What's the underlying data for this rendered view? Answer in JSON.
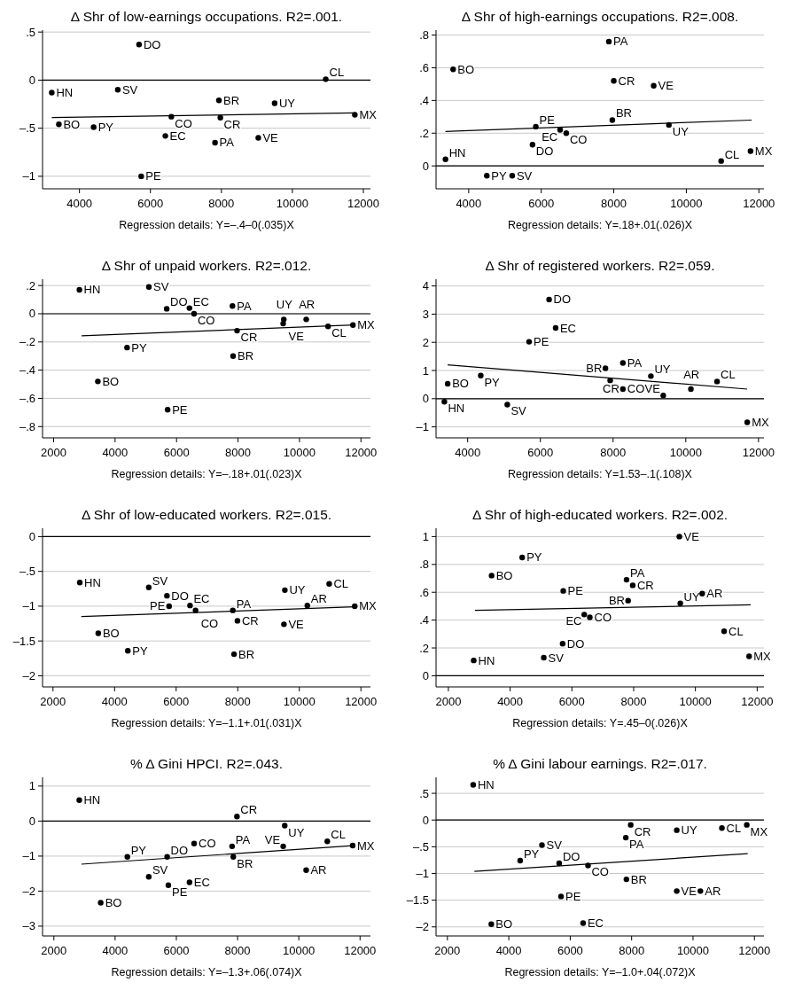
{
  "chart_data": [
    {
      "type": "scatter",
      "title": "Δ Shr of low-earnings occupations. R2=.001.",
      "xlabel": "Regression details: Y=–.4–0(.035)X",
      "xlim": [
        2960,
        12200
      ],
      "xticks": [
        4000,
        6000,
        8000,
        10000,
        12000
      ],
      "ylim": [
        -1.13,
        0.52
      ],
      "yticks": [
        {
          "value": 0.5,
          "label": ".5"
        },
        0,
        {
          "value": -0.5,
          "label": "–.5"
        },
        {
          "value": -1,
          "label": "–1"
        }
      ],
      "grid": "y",
      "marker": "circle",
      "ref_lines": [
        {
          "axis": "y",
          "value": 0,
          "color": "#000000"
        }
      ],
      "series": [
        {
          "name": "HN",
          "color": "#000000",
          "x": [
            3220
          ],
          "values": [
            -0.13
          ]
        },
        {
          "name": "DO",
          "color": "#000000",
          "x": [
            5680
          ],
          "values": [
            0.37
          ]
        },
        {
          "name": "SV",
          "color": "#000000",
          "x": [
            5080
          ],
          "values": [
            -0.1
          ]
        },
        {
          "name": "BO",
          "color": "#000000",
          "x": [
            3420
          ],
          "values": [
            -0.46
          ]
        },
        {
          "name": "PY",
          "color": "#000000",
          "x": [
            4400
          ],
          "values": [
            -0.49
          ]
        },
        {
          "name": "CO",
          "color": "#000000",
          "x": [
            6590
          ],
          "values": [
            -0.38
          ]
        },
        {
          "name": "EC",
          "color": "#000000",
          "x": [
            6420
          ],
          "values": [
            -0.58
          ]
        },
        {
          "name": "PE",
          "color": "#000000",
          "x": [
            5740
          ],
          "values": [
            -1.0
          ]
        },
        {
          "name": "BR",
          "color": "#000000",
          "x": [
            7930
          ],
          "values": [
            -0.21
          ]
        },
        {
          "name": "CR",
          "color": "#000000",
          "x": [
            7970
          ],
          "values": [
            -0.39
          ]
        },
        {
          "name": "PA",
          "color": "#000000",
          "x": [
            7820
          ],
          "values": [
            -0.65
          ]
        },
        {
          "name": "UY",
          "color": "#000000",
          "x": [
            9500
          ],
          "values": [
            -0.24
          ]
        },
        {
          "name": "VE",
          "color": "#000000",
          "x": [
            9040
          ],
          "values": [
            -0.6
          ]
        },
        {
          "name": "CL",
          "color": "#000000",
          "x": [
            10940
          ],
          "values": [
            0.01
          ]
        },
        {
          "name": "MX",
          "color": "#000000",
          "x": [
            11760
          ],
          "values": [
            -0.36
          ]
        },
        {
          "type": "line",
          "marker": "none",
          "color": "#000000",
          "x": [
            3220,
            11760
          ],
          "values": [
            -0.39,
            -0.34
          ]
        }
      ]
    },
    {
      "type": "scatter",
      "title": "Δ Shr of high-earnings occupations. R2=.008.",
      "xlabel": "Regression details: Y=.18+.01(.026)X",
      "xlim": [
        3100,
        12140
      ],
      "xticks": [
        4000,
        6000,
        8000,
        10000,
        12000
      ],
      "ylim": [
        -0.14,
        0.83
      ],
      "yticks": [
        {
          "value": 0.8,
          "label": ".8"
        },
        {
          "value": 0.6,
          "label": ".6"
        },
        {
          "value": 0.4,
          "label": ".4"
        },
        {
          "value": 0.2,
          "label": ".2"
        },
        0
      ],
      "grid": "y",
      "marker": "circle",
      "ref_lines": [
        {
          "axis": "y",
          "value": 0,
          "color": "#000000"
        }
      ],
      "series": [
        {
          "name": "PA",
          "color": "#000000",
          "x": [
            7865
          ],
          "values": [
            0.76
          ]
        },
        {
          "name": "BO",
          "color": "#000000",
          "x": [
            3570
          ],
          "values": [
            0.59
          ]
        },
        {
          "name": "CR",
          "color": "#000000",
          "x": [
            8000
          ],
          "values": [
            0.52
          ]
        },
        {
          "name": "VE",
          "color": "#000000",
          "x": [
            9100
          ],
          "values": [
            0.49
          ]
        },
        {
          "name": "PE",
          "color": "#000000",
          "x": [
            5850
          ],
          "values": [
            0.24
          ]
        },
        {
          "name": "EC",
          "color": "#000000",
          "x": [
            6520
          ],
          "values": [
            0.22
          ]
        },
        {
          "name": "CO",
          "color": "#000000",
          "x": [
            6690
          ],
          "values": [
            0.2
          ]
        },
        {
          "name": "BR",
          "color": "#000000",
          "x": [
            7960
          ],
          "values": [
            0.28
          ]
        },
        {
          "name": "UY",
          "color": "#000000",
          "x": [
            9520
          ],
          "values": [
            0.25
          ]
        },
        {
          "name": "DO",
          "color": "#000000",
          "x": [
            5760
          ],
          "values": [
            0.13
          ]
        },
        {
          "name": "HN",
          "color": "#000000",
          "x": [
            3360
          ],
          "values": [
            0.04
          ]
        },
        {
          "name": "PY",
          "color": "#000000",
          "x": [
            4500
          ],
          "values": [
            -0.06
          ]
        },
        {
          "name": "SV",
          "color": "#000000",
          "x": [
            5200
          ],
          "values": [
            -0.06
          ]
        },
        {
          "name": "CL",
          "color": "#000000",
          "x": [
            10960
          ],
          "values": [
            0.03
          ]
        },
        {
          "name": "MX",
          "color": "#000000",
          "x": [
            11770
          ],
          "values": [
            0.09
          ]
        },
        {
          "type": "line",
          "marker": "none",
          "color": "#000000",
          "x": [
            3360,
            11800
          ],
          "values": [
            0.21,
            0.28
          ]
        }
      ]
    },
    {
      "type": "scatter",
      "title": "Δ Shr of unpaid workers. R2=.012.",
      "xlabel": "Regression details: Y=–.18+.01(.023)X",
      "xlim": [
        1640,
        12310
      ],
      "xticks": [
        2000,
        4000,
        6000,
        8000,
        10000,
        12000
      ],
      "ylim": [
        -0.88,
        0.245
      ],
      "yticks": [
        {
          "value": 0.2,
          "label": ".2"
        },
        0,
        {
          "value": -0.2,
          "label": "–.2"
        },
        {
          "value": -0.4,
          "label": "–.4"
        },
        {
          "value": -0.6,
          "label": "–.6"
        },
        {
          "value": -0.8,
          "label": "–.8"
        }
      ],
      "grid": "y",
      "marker": "circle",
      "ref_lines": [
        {
          "axis": "y",
          "value": 0,
          "color": "#000000"
        }
      ],
      "series": [
        {
          "name": "HN",
          "color": "#000000",
          "x": [
            2840
          ],
          "values": [
            0.17
          ]
        },
        {
          "name": "SV",
          "color": "#000000",
          "x": [
            5100
          ],
          "values": [
            0.19
          ]
        },
        {
          "name": "DO",
          "color": "#000000",
          "x": [
            5680
          ],
          "values": [
            0.035
          ]
        },
        {
          "name": "EC",
          "color": "#000000",
          "x": [
            6420
          ],
          "values": [
            0.04
          ]
        },
        {
          "name": "CO",
          "color": "#000000",
          "x": [
            6570
          ],
          "values": [
            0.0
          ]
        },
        {
          "name": "PA",
          "color": "#000000",
          "x": [
            7820
          ],
          "values": [
            0.055
          ]
        },
        {
          "name": "UY",
          "color": "#000000",
          "x": [
            9490
          ],
          "values": [
            -0.04
          ]
        },
        {
          "name": "VE",
          "color": "#000000",
          "x": [
            9470
          ],
          "values": [
            -0.07
          ]
        },
        {
          "name": "AR",
          "color": "#000000",
          "x": [
            10220
          ],
          "values": [
            -0.04
          ]
        },
        {
          "name": "CL",
          "color": "#000000",
          "x": [
            10930
          ],
          "values": [
            -0.09
          ]
        },
        {
          "name": "MX",
          "color": "#000000",
          "x": [
            11740
          ],
          "values": [
            -0.08
          ]
        },
        {
          "name": "CR",
          "color": "#000000",
          "x": [
            7970
          ],
          "values": [
            -0.12
          ]
        },
        {
          "name": "BR",
          "color": "#000000",
          "x": [
            7840
          ],
          "values": [
            -0.3
          ]
        },
        {
          "name": "PY",
          "color": "#000000",
          "x": [
            4390
          ],
          "values": [
            -0.24
          ]
        },
        {
          "name": "BO",
          "color": "#000000",
          "x": [
            3440
          ],
          "values": [
            -0.48
          ]
        },
        {
          "name": "PE",
          "color": "#000000",
          "x": [
            5710
          ],
          "values": [
            -0.68
          ]
        },
        {
          "type": "line",
          "marker": "none",
          "color": "#000000",
          "x": [
            2910,
            11770
          ],
          "values": [
            -0.156,
            -0.08
          ]
        }
      ]
    },
    {
      "type": "scatter",
      "title": "Δ Shr of registered workers. R2=.059.",
      "xlabel": "Regression details: Y=1.53–.1(.108)X",
      "xlim": [
        3130,
        12150
      ],
      "xticks": [
        4000,
        6000,
        8000,
        10000,
        12000
      ],
      "ylim": [
        -1.39,
        4.24
      ],
      "yticks": [
        4,
        3,
        2,
        1,
        0,
        {
          "value": -1,
          "label": "–1"
        }
      ],
      "grid": "y",
      "marker": "circle",
      "ref_lines": [
        {
          "axis": "y",
          "value": 0,
          "color": "#000000"
        }
      ],
      "series": [
        {
          "name": "DO",
          "color": "#000000",
          "x": [
            6240
          ],
          "values": [
            3.52
          ]
        },
        {
          "name": "EC",
          "color": "#000000",
          "x": [
            6420
          ],
          "values": [
            2.51
          ]
        },
        {
          "name": "PE",
          "color": "#000000",
          "x": [
            5690
          ],
          "values": [
            2.02
          ]
        },
        {
          "name": "BR",
          "color": "#000000",
          "x": [
            7790
          ],
          "values": [
            1.08
          ]
        },
        {
          "name": "PA",
          "color": "#000000",
          "x": [
            8270
          ],
          "values": [
            1.27
          ]
        },
        {
          "name": "UY",
          "color": "#000000",
          "x": [
            9040
          ],
          "values": [
            0.8
          ]
        },
        {
          "name": "AR",
          "color": "#000000",
          "x": [
            10140
          ],
          "values": [
            0.34
          ]
        },
        {
          "name": "CL",
          "color": "#000000",
          "x": [
            10860
          ],
          "values": [
            0.61
          ]
        },
        {
          "name": "CR",
          "color": "#000000",
          "x": [
            7920
          ],
          "values": [
            0.65
          ]
        },
        {
          "name": "CO",
          "color": "#000000",
          "x": [
            8270
          ],
          "values": [
            0.34
          ]
        },
        {
          "name": "VE",
          "color": "#000000",
          "x": [
            9380
          ],
          "values": [
            0.11
          ]
        },
        {
          "name": "BO",
          "color": "#000000",
          "x": [
            3450
          ],
          "values": [
            0.53
          ]
        },
        {
          "name": "PY",
          "color": "#000000",
          "x": [
            4360
          ],
          "values": [
            0.82
          ]
        },
        {
          "name": "HN",
          "color": "#000000",
          "x": [
            3360
          ],
          "values": [
            -0.11
          ]
        },
        {
          "name": "SV",
          "color": "#000000",
          "x": [
            5090
          ],
          "values": [
            -0.21
          ]
        },
        {
          "name": "MX",
          "color": "#000000",
          "x": [
            11690
          ],
          "values": [
            -0.84
          ]
        },
        {
          "type": "line",
          "marker": "none",
          "color": "#000000",
          "x": [
            3450,
            11690
          ],
          "values": [
            1.2,
            0.34
          ]
        }
      ]
    },
    {
      "type": "scatter",
      "title": "Δ Shr of low-educated workers. R2=.015.",
      "xlabel": "Regression details: Y=–1.1+.01(.031)X",
      "xlim": [
        1660,
        12310
      ],
      "xticks": [
        2000,
        4000,
        6000,
        8000,
        10000,
        12000
      ],
      "ylim": [
        -2.16,
        0.12
      ],
      "yticks": [
        0,
        {
          "value": -0.5,
          "label": "–.5"
        },
        {
          "value": -1,
          "label": "–1"
        },
        {
          "value": -1.5,
          "label": "–1.5"
        },
        {
          "value": -2,
          "label": "–2"
        }
      ],
      "grid": "y",
      "marker": "circle",
      "ref_lines": [
        {
          "axis": "y",
          "value": 0,
          "color": "#000000"
        }
      ],
      "series": [
        {
          "name": "HN",
          "color": "#000000",
          "x": [
            2870
          ],
          "values": [
            -0.66
          ]
        },
        {
          "name": "SV",
          "color": "#000000",
          "x": [
            5110
          ],
          "values": [
            -0.73
          ]
        },
        {
          "name": "DO",
          "color": "#000000",
          "x": [
            5700
          ],
          "values": [
            -0.85
          ]
        },
        {
          "name": "PE",
          "color": "#000000",
          "x": [
            5770
          ],
          "values": [
            -1.0
          ]
        },
        {
          "name": "EC",
          "color": "#000000",
          "x": [
            6450
          ],
          "values": [
            -0.99
          ]
        },
        {
          "name": "CO",
          "color": "#000000",
          "x": [
            6630
          ],
          "values": [
            -1.06
          ]
        },
        {
          "name": "PA",
          "color": "#000000",
          "x": [
            7840
          ],
          "values": [
            -1.06
          ]
        },
        {
          "name": "CR",
          "color": "#000000",
          "x": [
            7990
          ],
          "values": [
            -1.21
          ]
        },
        {
          "name": "BR",
          "color": "#000000",
          "x": [
            7880
          ],
          "values": [
            -1.69
          ]
        },
        {
          "name": "UY",
          "color": "#000000",
          "x": [
            9530
          ],
          "values": [
            -0.77
          ]
        },
        {
          "name": "VE",
          "color": "#000000",
          "x": [
            9500
          ],
          "values": [
            -1.26
          ]
        },
        {
          "name": "AR",
          "color": "#000000",
          "x": [
            10260
          ],
          "values": [
            -0.99
          ]
        },
        {
          "name": "CL",
          "color": "#000000",
          "x": [
            10970
          ],
          "values": [
            -0.68
          ]
        },
        {
          "name": "MX",
          "color": "#000000",
          "x": [
            11800
          ],
          "values": [
            -1.0
          ]
        },
        {
          "name": "BO",
          "color": "#000000",
          "x": [
            3470
          ],
          "values": [
            -1.39
          ]
        },
        {
          "name": "PY",
          "color": "#000000",
          "x": [
            4430
          ],
          "values": [
            -1.64
          ]
        },
        {
          "type": "line",
          "marker": "none",
          "color": "#000000",
          "x": [
            2920,
            11800
          ],
          "values": [
            -1.15,
            -1.01
          ]
        }
      ]
    },
    {
      "type": "scatter",
      "title": "Δ Shr of high-educated workers. R2=.002.",
      "xlabel": "Regression details: Y=.45–0(.026)X",
      "xlim": [
        1600,
        12220
      ],
      "xticks": [
        2000,
        4000,
        6000,
        8000,
        10000,
        12000
      ],
      "ylim": [
        -0.08,
        1.06
      ],
      "yticks": [
        1,
        {
          "value": 0.8,
          "label": ".8"
        },
        {
          "value": 0.6,
          "label": ".6"
        },
        {
          "value": 0.4,
          "label": ".4"
        },
        {
          "value": 0.2,
          "label": ".2"
        },
        0
      ],
      "grid": "y",
      "marker": "circle",
      "ref_lines": [
        {
          "axis": "y",
          "value": 0,
          "color": "#000000"
        }
      ],
      "series": [
        {
          "name": "VE",
          "color": "#000000",
          "x": [
            9480
          ],
          "values": [
            1.0
          ]
        },
        {
          "name": "PY",
          "color": "#000000",
          "x": [
            4390
          ],
          "values": [
            0.85
          ]
        },
        {
          "name": "BO",
          "color": "#000000",
          "x": [
            3400
          ],
          "values": [
            0.72
          ]
        },
        {
          "name": "PE",
          "color": "#000000",
          "x": [
            5720
          ],
          "values": [
            0.61
          ]
        },
        {
          "name": "PA",
          "color": "#000000",
          "x": [
            7770
          ],
          "values": [
            0.69
          ]
        },
        {
          "name": "CR",
          "color": "#000000",
          "x": [
            7970
          ],
          "values": [
            0.65
          ]
        },
        {
          "name": "BR",
          "color": "#000000",
          "x": [
            7820
          ],
          "values": [
            0.54
          ]
        },
        {
          "name": "UY",
          "color": "#000000",
          "x": [
            9510
          ],
          "values": [
            0.52
          ]
        },
        {
          "name": "AR",
          "color": "#000000",
          "x": [
            10220
          ],
          "values": [
            0.59
          ]
        },
        {
          "name": "EC",
          "color": "#000000",
          "x": [
            6400
          ],
          "values": [
            0.44
          ]
        },
        {
          "name": "CO",
          "color": "#000000",
          "x": [
            6580
          ],
          "values": [
            0.42
          ]
        },
        {
          "name": "CL",
          "color": "#000000",
          "x": [
            10930
          ],
          "values": [
            0.32
          ]
        },
        {
          "name": "DO",
          "color": "#000000",
          "x": [
            5700
          ],
          "values": [
            0.23
          ]
        },
        {
          "name": "SV",
          "color": "#000000",
          "x": [
            5090
          ],
          "values": [
            0.13
          ]
        },
        {
          "name": "HN",
          "color": "#000000",
          "x": [
            2820
          ],
          "values": [
            0.11
          ]
        },
        {
          "name": "MX",
          "color": "#000000",
          "x": [
            11740
          ],
          "values": [
            0.14
          ]
        },
        {
          "type": "line",
          "marker": "none",
          "color": "#000000",
          "x": [
            2860,
            11790
          ],
          "values": [
            0.47,
            0.51
          ]
        }
      ]
    },
    {
      "type": "scatter",
      "title": "% Δ Gini HPCI. R2=.043.",
      "xlabel": "Regression details: Y=–1.3+.06(.074)X",
      "xlim": [
        1630,
        12340
      ],
      "xticks": [
        2000,
        4000,
        6000,
        8000,
        10000,
        12000
      ],
      "ylim": [
        -3.28,
        1.25
      ],
      "yticks": [
        1,
        0,
        {
          "value": -1,
          "label": "–1"
        },
        {
          "value": -2,
          "label": "–2"
        },
        {
          "value": -3,
          "label": "–3"
        }
      ],
      "grid": "y",
      "marker": "circle",
      "ref_lines": [
        {
          "axis": "y",
          "value": 0,
          "color": "#000000"
        }
      ],
      "series": [
        {
          "name": "HN",
          "color": "#000000",
          "x": [
            2830
          ],
          "values": [
            0.6
          ]
        },
        {
          "name": "CR",
          "color": "#000000",
          "x": [
            7980
          ],
          "values": [
            0.13
          ]
        },
        {
          "name": "UY",
          "color": "#000000",
          "x": [
            9540
          ],
          "values": [
            -0.13
          ]
        },
        {
          "name": "CL",
          "color": "#000000",
          "x": [
            10930
          ],
          "values": [
            -0.58
          ]
        },
        {
          "name": "MX",
          "color": "#000000",
          "x": [
            11760
          ],
          "values": [
            -0.7
          ]
        },
        {
          "name": "VE",
          "color": "#000000",
          "x": [
            9490
          ],
          "values": [
            -0.72
          ]
        },
        {
          "name": "PA",
          "color": "#000000",
          "x": [
            7820
          ],
          "values": [
            -0.72
          ]
        },
        {
          "name": "CO",
          "color": "#000000",
          "x": [
            6580
          ],
          "values": [
            -0.64
          ]
        },
        {
          "name": "DO",
          "color": "#000000",
          "x": [
            5700
          ],
          "values": [
            -1.02
          ]
        },
        {
          "name": "PY",
          "color": "#000000",
          "x": [
            4400
          ],
          "values": [
            -1.02
          ]
        },
        {
          "name": "BR",
          "color": "#000000",
          "x": [
            7860
          ],
          "values": [
            -1.02
          ]
        },
        {
          "name": "AR",
          "color": "#000000",
          "x": [
            10240
          ],
          "values": [
            -1.4
          ]
        },
        {
          "name": "SV",
          "color": "#000000",
          "x": [
            5100
          ],
          "values": [
            -1.59
          ]
        },
        {
          "name": "PE",
          "color": "#000000",
          "x": [
            5740
          ],
          "values": [
            -1.83
          ]
        },
        {
          "name": "EC",
          "color": "#000000",
          "x": [
            6430
          ],
          "values": [
            -1.75
          ]
        },
        {
          "name": "BO",
          "color": "#000000",
          "x": [
            3530
          ],
          "values": [
            -2.33
          ]
        },
        {
          "type": "line",
          "marker": "none",
          "color": "#000000",
          "x": [
            2900,
            11760
          ],
          "values": [
            -1.23,
            -0.7
          ]
        }
      ]
    },
    {
      "type": "scatter",
      "title": "% Δ Gini labour earnings. R2=.017.",
      "xlabel": "Regression details: Y=–1.0+.04(.072)X",
      "xlim": [
        1630,
        12310
      ],
      "xticks": [
        2000,
        4000,
        6000,
        8000,
        10000,
        12000
      ],
      "ylim": [
        -2.17,
        0.8
      ],
      "yticks": [
        {
          "value": 0.5,
          "label": ".5"
        },
        0,
        {
          "value": -0.5,
          "label": "–.5"
        },
        {
          "value": -1,
          "label": "–1"
        },
        {
          "value": -1.5,
          "label": "–1.5"
        },
        {
          "value": -2,
          "label": "–2"
        }
      ],
      "grid": "y",
      "marker": "circle",
      "ref_lines": [
        {
          "axis": "y",
          "value": 0,
          "color": "#000000"
        }
      ],
      "series": [
        {
          "name": "HN",
          "color": "#000000",
          "x": [
            2840
          ],
          "values": [
            0.66
          ]
        },
        {
          "name": "CR",
          "color": "#000000",
          "x": [
            7970
          ],
          "values": [
            -0.09
          ]
        },
        {
          "name": "UY",
          "color": "#000000",
          "x": [
            9470
          ],
          "values": [
            -0.19
          ]
        },
        {
          "name": "CL",
          "color": "#000000",
          "x": [
            10940
          ],
          "values": [
            -0.15
          ]
        },
        {
          "name": "MX",
          "color": "#000000",
          "x": [
            11750
          ],
          "values": [
            -0.09
          ]
        },
        {
          "name": "PA",
          "color": "#000000",
          "x": [
            7810
          ],
          "values": [
            -0.33
          ]
        },
        {
          "name": "SV",
          "color": "#000000",
          "x": [
            5080
          ],
          "values": [
            -0.47
          ]
        },
        {
          "name": "PY",
          "color": "#000000",
          "x": [
            4370
          ],
          "values": [
            -0.76
          ]
        },
        {
          "name": "DO",
          "color": "#000000",
          "x": [
            5640
          ],
          "values": [
            -0.81
          ]
        },
        {
          "name": "CO",
          "color": "#000000",
          "x": [
            6580
          ],
          "values": [
            -0.85
          ]
        },
        {
          "name": "BR",
          "color": "#000000",
          "x": [
            7830
          ],
          "values": [
            -1.11
          ]
        },
        {
          "name": "VE",
          "color": "#000000",
          "x": [
            9470
          ],
          "values": [
            -1.33
          ]
        },
        {
          "name": "AR",
          "color": "#000000",
          "x": [
            10240
          ],
          "values": [
            -1.33
          ]
        },
        {
          "name": "PE",
          "color": "#000000",
          "x": [
            5700
          ],
          "values": [
            -1.43
          ]
        },
        {
          "name": "BO",
          "color": "#000000",
          "x": [
            3430
          ],
          "values": [
            -1.95
          ]
        },
        {
          "name": "EC",
          "color": "#000000",
          "x": [
            6420
          ],
          "values": [
            -1.93
          ]
        },
        {
          "type": "line",
          "marker": "none",
          "color": "#000000",
          "x": [
            2880,
            11780
          ],
          "values": [
            -0.96,
            -0.63
          ]
        }
      ]
    }
  ]
}
